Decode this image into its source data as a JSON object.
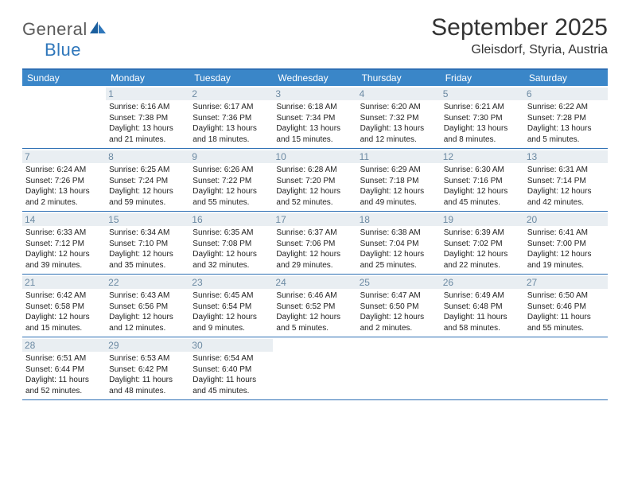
{
  "brand": {
    "general": "General",
    "blue": "Blue"
  },
  "title": "September 2025",
  "location": "Gleisdorf, Styria, Austria",
  "colors": {
    "header_bar": "#3a86c8",
    "header_border": "#2d6fb4",
    "daynum_bg": "#e9eef2",
    "daynum_color": "#6c8aa3",
    "text": "#222222",
    "logo_gray": "#5a5a5a",
    "logo_blue": "#2f77bb"
  },
  "days_of_week": [
    "Sunday",
    "Monday",
    "Tuesday",
    "Wednesday",
    "Thursday",
    "Friday",
    "Saturday"
  ],
  "weeks": [
    [
      null,
      {
        "n": "1",
        "sr": "Sunrise: 6:16 AM",
        "ss": "Sunset: 7:38 PM",
        "d1": "Daylight: 13 hours",
        "d2": "and 21 minutes."
      },
      {
        "n": "2",
        "sr": "Sunrise: 6:17 AM",
        "ss": "Sunset: 7:36 PM",
        "d1": "Daylight: 13 hours",
        "d2": "and 18 minutes."
      },
      {
        "n": "3",
        "sr": "Sunrise: 6:18 AM",
        "ss": "Sunset: 7:34 PM",
        "d1": "Daylight: 13 hours",
        "d2": "and 15 minutes."
      },
      {
        "n": "4",
        "sr": "Sunrise: 6:20 AM",
        "ss": "Sunset: 7:32 PM",
        "d1": "Daylight: 13 hours",
        "d2": "and 12 minutes."
      },
      {
        "n": "5",
        "sr": "Sunrise: 6:21 AM",
        "ss": "Sunset: 7:30 PM",
        "d1": "Daylight: 13 hours",
        "d2": "and 8 minutes."
      },
      {
        "n": "6",
        "sr": "Sunrise: 6:22 AM",
        "ss": "Sunset: 7:28 PM",
        "d1": "Daylight: 13 hours",
        "d2": "and 5 minutes."
      }
    ],
    [
      {
        "n": "7",
        "sr": "Sunrise: 6:24 AM",
        "ss": "Sunset: 7:26 PM",
        "d1": "Daylight: 13 hours",
        "d2": "and 2 minutes."
      },
      {
        "n": "8",
        "sr": "Sunrise: 6:25 AM",
        "ss": "Sunset: 7:24 PM",
        "d1": "Daylight: 12 hours",
        "d2": "and 59 minutes."
      },
      {
        "n": "9",
        "sr": "Sunrise: 6:26 AM",
        "ss": "Sunset: 7:22 PM",
        "d1": "Daylight: 12 hours",
        "d2": "and 55 minutes."
      },
      {
        "n": "10",
        "sr": "Sunrise: 6:28 AM",
        "ss": "Sunset: 7:20 PM",
        "d1": "Daylight: 12 hours",
        "d2": "and 52 minutes."
      },
      {
        "n": "11",
        "sr": "Sunrise: 6:29 AM",
        "ss": "Sunset: 7:18 PM",
        "d1": "Daylight: 12 hours",
        "d2": "and 49 minutes."
      },
      {
        "n": "12",
        "sr": "Sunrise: 6:30 AM",
        "ss": "Sunset: 7:16 PM",
        "d1": "Daylight: 12 hours",
        "d2": "and 45 minutes."
      },
      {
        "n": "13",
        "sr": "Sunrise: 6:31 AM",
        "ss": "Sunset: 7:14 PM",
        "d1": "Daylight: 12 hours",
        "d2": "and 42 minutes."
      }
    ],
    [
      {
        "n": "14",
        "sr": "Sunrise: 6:33 AM",
        "ss": "Sunset: 7:12 PM",
        "d1": "Daylight: 12 hours",
        "d2": "and 39 minutes."
      },
      {
        "n": "15",
        "sr": "Sunrise: 6:34 AM",
        "ss": "Sunset: 7:10 PM",
        "d1": "Daylight: 12 hours",
        "d2": "and 35 minutes."
      },
      {
        "n": "16",
        "sr": "Sunrise: 6:35 AM",
        "ss": "Sunset: 7:08 PM",
        "d1": "Daylight: 12 hours",
        "d2": "and 32 minutes."
      },
      {
        "n": "17",
        "sr": "Sunrise: 6:37 AM",
        "ss": "Sunset: 7:06 PM",
        "d1": "Daylight: 12 hours",
        "d2": "and 29 minutes."
      },
      {
        "n": "18",
        "sr": "Sunrise: 6:38 AM",
        "ss": "Sunset: 7:04 PM",
        "d1": "Daylight: 12 hours",
        "d2": "and 25 minutes."
      },
      {
        "n": "19",
        "sr": "Sunrise: 6:39 AM",
        "ss": "Sunset: 7:02 PM",
        "d1": "Daylight: 12 hours",
        "d2": "and 22 minutes."
      },
      {
        "n": "20",
        "sr": "Sunrise: 6:41 AM",
        "ss": "Sunset: 7:00 PM",
        "d1": "Daylight: 12 hours",
        "d2": "and 19 minutes."
      }
    ],
    [
      {
        "n": "21",
        "sr": "Sunrise: 6:42 AM",
        "ss": "Sunset: 6:58 PM",
        "d1": "Daylight: 12 hours",
        "d2": "and 15 minutes."
      },
      {
        "n": "22",
        "sr": "Sunrise: 6:43 AM",
        "ss": "Sunset: 6:56 PM",
        "d1": "Daylight: 12 hours",
        "d2": "and 12 minutes."
      },
      {
        "n": "23",
        "sr": "Sunrise: 6:45 AM",
        "ss": "Sunset: 6:54 PM",
        "d1": "Daylight: 12 hours",
        "d2": "and 9 minutes."
      },
      {
        "n": "24",
        "sr": "Sunrise: 6:46 AM",
        "ss": "Sunset: 6:52 PM",
        "d1": "Daylight: 12 hours",
        "d2": "and 5 minutes."
      },
      {
        "n": "25",
        "sr": "Sunrise: 6:47 AM",
        "ss": "Sunset: 6:50 PM",
        "d1": "Daylight: 12 hours",
        "d2": "and 2 minutes."
      },
      {
        "n": "26",
        "sr": "Sunrise: 6:49 AM",
        "ss": "Sunset: 6:48 PM",
        "d1": "Daylight: 11 hours",
        "d2": "and 58 minutes."
      },
      {
        "n": "27",
        "sr": "Sunrise: 6:50 AM",
        "ss": "Sunset: 6:46 PM",
        "d1": "Daylight: 11 hours",
        "d2": "and 55 minutes."
      }
    ],
    [
      {
        "n": "28",
        "sr": "Sunrise: 6:51 AM",
        "ss": "Sunset: 6:44 PM",
        "d1": "Daylight: 11 hours",
        "d2": "and 52 minutes."
      },
      {
        "n": "29",
        "sr": "Sunrise: 6:53 AM",
        "ss": "Sunset: 6:42 PM",
        "d1": "Daylight: 11 hours",
        "d2": "and 48 minutes."
      },
      {
        "n": "30",
        "sr": "Sunrise: 6:54 AM",
        "ss": "Sunset: 6:40 PM",
        "d1": "Daylight: 11 hours",
        "d2": "and 45 minutes."
      },
      null,
      null,
      null,
      null
    ]
  ]
}
